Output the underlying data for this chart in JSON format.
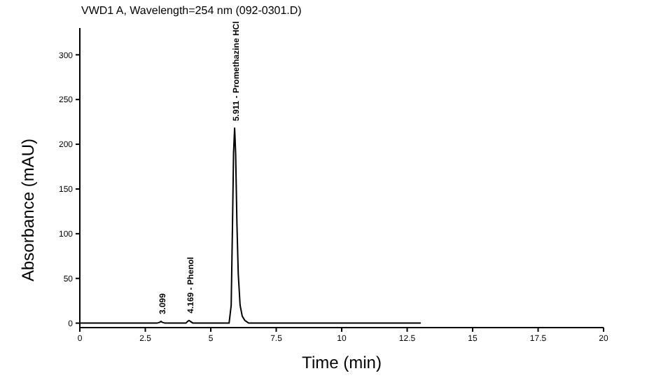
{
  "chart_data": {
    "type": "line",
    "title": "VWD1 A, Wavelength=254 nm (092-0301.D)",
    "xlabel": "Time (min)",
    "ylabel": "Absorbance (mAU)",
    "x": [
      0,
      1,
      2,
      2.95,
      3.05,
      3.1,
      3.15,
      3.25,
      4.05,
      4.12,
      4.17,
      4.22,
      4.32,
      5.7,
      5.78,
      5.83,
      5.87,
      5.911,
      5.95,
      6.0,
      6.05,
      6.12,
      6.2,
      6.3,
      6.45,
      7,
      8,
      10,
      12,
      13
    ],
    "series": [
      {
        "color": "#000000",
        "values": [
          0,
          0,
          0,
          0,
          1,
          2,
          1,
          0,
          0,
          2,
          3,
          2,
          0,
          0,
          20,
          110,
          190,
          218,
          190,
          110,
          55,
          20,
          8,
          3,
          0,
          0,
          0,
          0,
          0,
          0
        ]
      }
    ],
    "xlim": [
      0,
      20
    ],
    "xticks": [
      0,
      2.5,
      5,
      7.5,
      10,
      12.5,
      15,
      17.5,
      20
    ],
    "ylim": [
      -5,
      330
    ],
    "yticks": [
      0,
      50,
      100,
      150,
      200,
      250,
      300
    ],
    "annotations": [
      {
        "text": "3.099",
        "x": 3.099,
        "y": 2
      },
      {
        "text": "4.169 - Phenol",
        "x": 4.169,
        "y": 3
      },
      {
        "text": "5.911 - Promethazine HCl",
        "x": 5.911,
        "y": 218
      }
    ],
    "grid": false,
    "legend": false,
    "marker": "none",
    "line_style": "solid"
  }
}
